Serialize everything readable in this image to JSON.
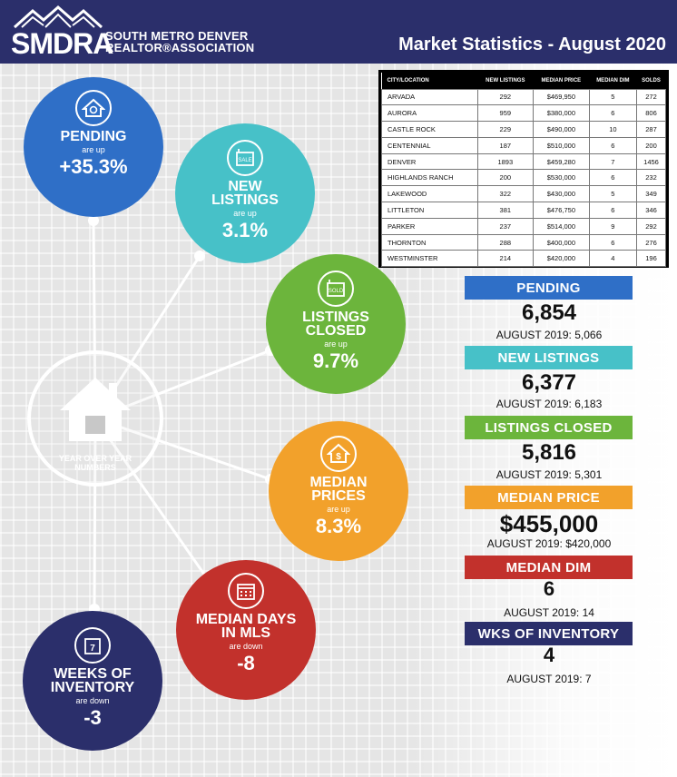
{
  "header": {
    "logo": "SMDRA",
    "org_line1": "SOUTH METRO DENVER",
    "org_line2": "REALTOR®ASSOCIATION",
    "title": "Market Statistics - August 2020"
  },
  "table": {
    "columns": [
      "CITY/LOCATION",
      "NEW LISTINGS",
      "MEDIAN PRICE",
      "MEDIAN DIM",
      "SOLDS"
    ],
    "rows": [
      [
        "ARVADA",
        "292",
        "$469,950",
        "5",
        "272"
      ],
      [
        "AURORA",
        "959",
        "$380,000",
        "6",
        "806"
      ],
      [
        "CASTLE ROCK",
        "229",
        "$490,000",
        "10",
        "287"
      ],
      [
        "CENTENNIAL",
        "187",
        "$510,000",
        "6",
        "200"
      ],
      [
        "DENVER",
        "1893",
        "$459,280",
        "7",
        "1456"
      ],
      [
        "HIGHLANDS RANCH",
        "200",
        "$530,000",
        "6",
        "232"
      ],
      [
        "LAKEWOOD",
        "322",
        "$430,000",
        "5",
        "349"
      ],
      [
        "LITTLETON",
        "381",
        "$476,750",
        "6",
        "346"
      ],
      [
        "PARKER",
        "237",
        "$514,000",
        "9",
        "292"
      ],
      [
        "THORNTON",
        "288",
        "$400,000",
        "6",
        "276"
      ],
      [
        "WESTMINSTER",
        "214",
        "$420,000",
        "4",
        "196"
      ]
    ]
  },
  "circles": {
    "pending": {
      "label": "PENDING",
      "sub": "are up",
      "value": "+35.3%",
      "icon": "house-search-icon"
    },
    "new_listings": {
      "label1": "NEW",
      "label2": "LISTINGS",
      "sub": "are up",
      "value": "3.1%",
      "icon": "for-sale-sign-icon",
      "icon_text": "SALE"
    },
    "listings_closed": {
      "label1": "LISTINGS",
      "label2": "CLOSED",
      "sub": "are up",
      "value": "9.7%",
      "icon": "sold-sign-icon",
      "icon_text": "SOLD"
    },
    "median_prices": {
      "label1": "MEDIAN",
      "label2": "PRICES",
      "sub": "are up",
      "value": "8.3%",
      "icon": "house-dollar-icon"
    },
    "median_days": {
      "label1": "MEDIAN DAYS",
      "label2": "IN MLS",
      "sub": "are down",
      "value": "-8",
      "icon": "calendar-icon"
    },
    "weeks_inventory": {
      "label1": "WEEKS OF",
      "label2": "INVENTORY",
      "sub": "are down",
      "value": "-3",
      "icon": "calendar-7-icon",
      "icon_text": "7"
    },
    "hub": {
      "label1": "YEAR OVER YEAR",
      "label2": "NUMBERS",
      "icon": "house-icon"
    }
  },
  "stats": [
    {
      "label": "PENDING",
      "value": "6,854",
      "prev": "AUGUST 2019: 5,066",
      "color": "#2f6fc7"
    },
    {
      "label": "NEW LISTINGS",
      "value": "6,377",
      "prev": "AUGUST 2019: 6,183",
      "color": "#47c1c8"
    },
    {
      "label": "LISTINGS CLOSED",
      "value": "5,816",
      "prev": "AUGUST 2019: 5,301",
      "color": "#6cb53c"
    },
    {
      "label": "MEDIAN PRICE",
      "value": "$455,000",
      "prev": "AUGUST 2019: $420,000",
      "color": "#f2a12b"
    },
    {
      "label": "MEDIAN DIM",
      "value": "6",
      "prev": "AUGUST 2019: 14",
      "color": "#c2312c"
    },
    {
      "label": "WKS OF INVENTORY",
      "value": "4",
      "prev": "AUGUST 2019: 7",
      "color": "#2b2f6b"
    }
  ]
}
